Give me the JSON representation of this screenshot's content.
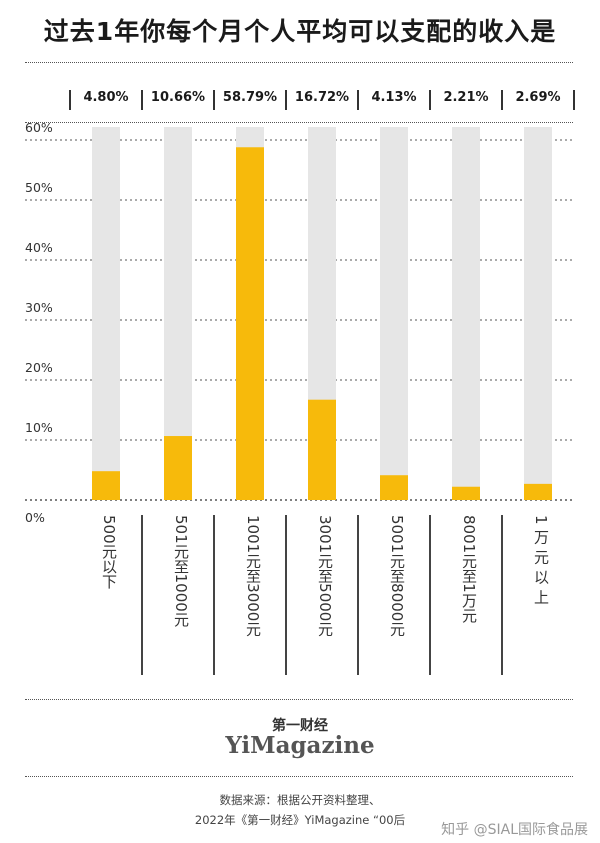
{
  "title": "过去1年你每个月个人平均可以支配的收入是",
  "chart_data": {
    "type": "bar",
    "categories": [
      "500元以下",
      "501元至1000元",
      "1001元至3000元",
      "3001元至5000元",
      "5001元至8000元",
      "8001元至1万元",
      "1万元以上"
    ],
    "values": [
      4.8,
      10.66,
      58.79,
      16.72,
      4.13,
      2.21,
      2.69
    ],
    "value_labels": [
      "4.80%",
      "10.66%",
      "58.79%",
      "16.72%",
      "4.13%",
      "2.21%",
      "2.69%"
    ],
    "ylim": [
      0,
      60
    ],
    "yticks": [
      "60%",
      "50%",
      "40%",
      "30%",
      "20%",
      "10%",
      "0%"
    ],
    "grid": true,
    "colors": {
      "bar": "#F7BA0B",
      "track": "#E6E6E6",
      "grid": "#555555"
    }
  },
  "brand": {
    "cn": "第一财经",
    "en": "YiMagazine"
  },
  "source": {
    "line1": "数据来源：根据公开资料整理、",
    "line2": "2022年《第一财经》YiMagazine “00后"
  },
  "watermark": "知乎 @SIAL国际食品展"
}
